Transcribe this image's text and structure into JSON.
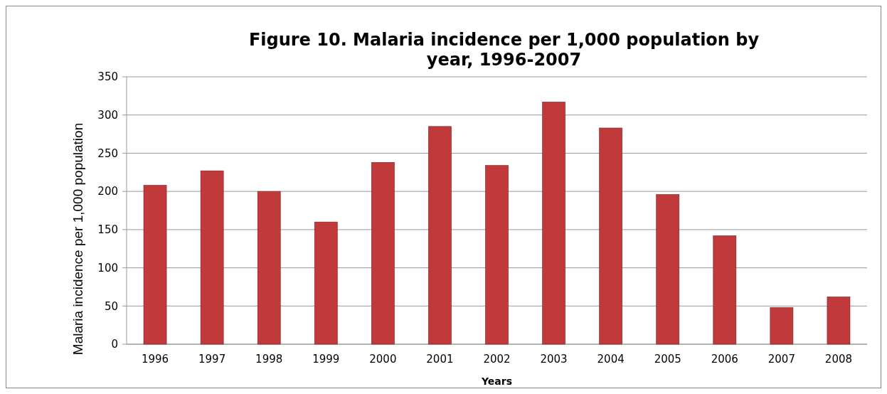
{
  "chart_data": {
    "type": "bar",
    "title": "Figure 10. Malaria incidence per 1,000 population by year, 1996-2007",
    "xlabel": "Years",
    "ylabel": "Malaria incidence per 1,000 population",
    "categories": [
      "1996",
      "1997",
      "1998",
      "1999",
      "2000",
      "2001",
      "2002",
      "2003",
      "2004",
      "2005",
      "2006",
      "2007",
      "2008"
    ],
    "values": [
      208,
      227,
      200,
      160,
      238,
      285,
      234,
      317,
      283,
      196,
      142,
      48,
      62
    ],
    "color": "#c0393b",
    "ylim": [
      0,
      350
    ],
    "yticks": [
      0,
      50,
      100,
      150,
      200,
      250,
      300,
      350
    ],
    "grid": "y"
  }
}
